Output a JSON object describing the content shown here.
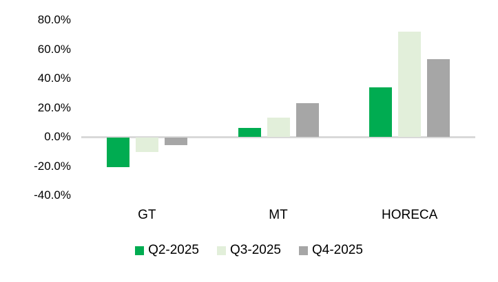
{
  "chart_data": {
    "type": "bar",
    "title": "",
    "xlabel": "",
    "ylabel": "",
    "categories": [
      "GT",
      "MT",
      "HORECA"
    ],
    "series": [
      {
        "name": "Q2-2025",
        "color": "#00AC51",
        "values": [
          -20,
          6,
          34
        ]
      },
      {
        "name": "Q3-2025",
        "color": "#E2EFDA",
        "values": [
          -10,
          13,
          72
        ]
      },
      {
        "name": "Q4-2025",
        "color": "#A6A6A6",
        "values": [
          -5,
          23,
          53
        ]
      }
    ],
    "value_unit": "%",
    "ylim": [
      -40,
      80
    ],
    "y_tick_step": 20,
    "y_tick_labels": [
      "80.0%",
      "60.0%",
      "40.0%",
      "20.0%",
      "0.0%",
      "-20.0%",
      "-40.0%"
    ],
    "grid": false,
    "legend_position": "bottom",
    "axis_line_color": "#D9D9D9",
    "text_color": "#000000",
    "background_color": "#FFFFFF"
  }
}
